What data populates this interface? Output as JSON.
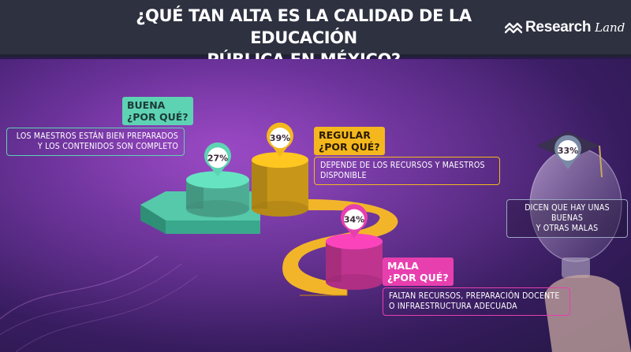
{
  "header": {
    "title_line1": "¿QUÉ TAN ALTA ES LA CALIDAD DE LA EDUCACIÓN",
    "title_line2": "PÚBLICA EN MÉXICO?",
    "logo_word": "Research",
    "logo_script": "Land"
  },
  "chart_data": {
    "type": "bar",
    "categories": [
      "BUENA",
      "REGULAR",
      "MALA",
      "DICEN QUE HAY UNAS BUENAS Y OTRAS MALAS"
    ],
    "values": [
      27,
      39,
      34,
      33
    ],
    "value_labels": [
      "27%",
      "39%",
      "34%",
      "33%"
    ],
    "colors": [
      "#5ed3b4",
      "#f4b81e",
      "#e83fae",
      "#7a8aa6"
    ],
    "items": [
      {
        "label": "BUENA",
        "question": "¿POR QUÉ?",
        "reason_line1": "LOS MAESTROS ESTÁN BIEN PREPARADOS",
        "reason_line2": "Y LOS CONTENIDOS SON COMPLETO",
        "accent": "#5ed3b4",
        "label_text_color": "#1c3a3a"
      },
      {
        "label": "REGULAR",
        "question": "¿POR QUÉ?",
        "reason_line1": "DEPENDE DE LOS RECURSOS Y MAESTROS",
        "reason_line2": "DISPONIBLE",
        "accent": "#f4b81e",
        "label_text_color": "#2a1a00"
      },
      {
        "label": "MALA",
        "question": "¿POR QUÉ?",
        "reason_line1": "FALTAN RECURSOS, PREPARACIÓN DOCENTE",
        "reason_line2": "O INFRAESTRUCTURA ADECUADA",
        "accent": "#e83fae",
        "label_text_color": "#ffffff"
      },
      {
        "label": "",
        "question": "",
        "reason_line1": "DICEN QUE HAY UNAS BUENAS",
        "reason_line2": "Y OTRAS MALAS",
        "accent": "#9aa6c2",
        "label_text_color": "#ffffff"
      }
    ]
  }
}
